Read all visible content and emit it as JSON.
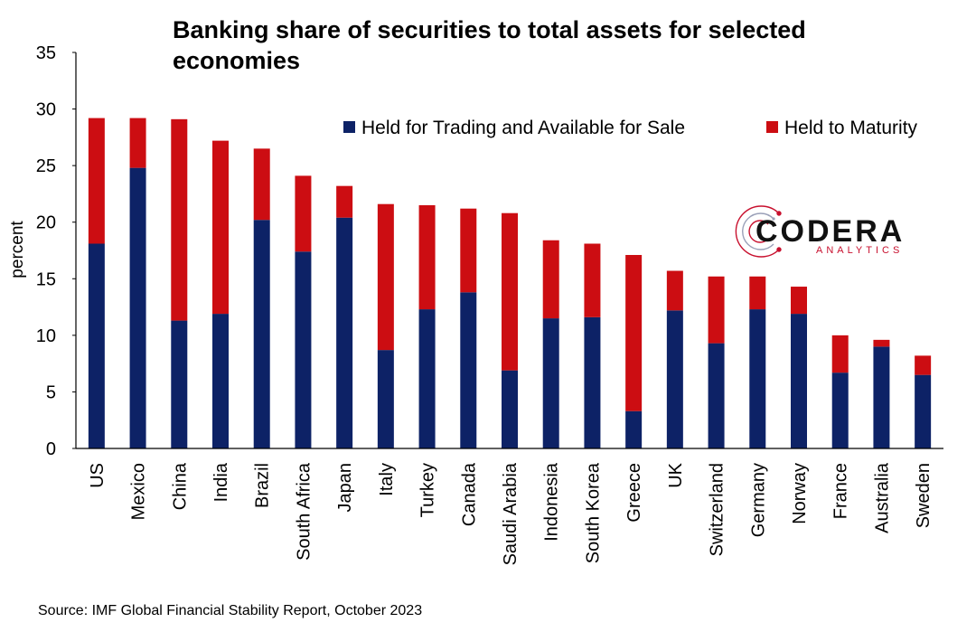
{
  "chart_data": {
    "type": "bar",
    "stacked": true,
    "title": "Banking share of securities to total assets for selected economies",
    "ylabel": "percent",
    "xlabel": "",
    "ylim": [
      0,
      35
    ],
    "yticks": [
      0,
      5,
      10,
      15,
      20,
      25,
      30,
      35
    ],
    "grid": false,
    "legend_position": "top-right",
    "categories": [
      "US",
      "Mexico",
      "China",
      "India",
      "Brazil",
      "South Africa",
      "Japan",
      "Italy",
      "Turkey",
      "Canada",
      "Saudi Arabia",
      "Indonesia",
      "South Korea",
      "Greece",
      "UK",
      "Switzerland",
      "Germany",
      "Norway",
      "France",
      "Australia",
      "Sweden"
    ],
    "series": [
      {
        "name": "Held for Trading and Available for Sale",
        "color": "#0d2266",
        "values": [
          18.1,
          24.8,
          11.3,
          11.9,
          20.2,
          17.4,
          20.4,
          8.7,
          12.3,
          13.8,
          6.9,
          11.5,
          11.6,
          3.3,
          12.2,
          9.3,
          12.3,
          11.9,
          6.7,
          9.0,
          6.5
        ]
      },
      {
        "name": "Held to Maturity",
        "color": "#cc0d12",
        "values": [
          11.1,
          4.4,
          17.8,
          15.3,
          6.3,
          6.7,
          2.8,
          12.9,
          9.2,
          7.4,
          13.9,
          6.9,
          6.5,
          13.8,
          3.5,
          5.9,
          2.9,
          2.4,
          3.3,
          0.6,
          1.7
        ]
      }
    ]
  },
  "source": "Source: IMF Global Financial Stability Report, October 2023",
  "logo": {
    "word": "CODERA",
    "sub": "ANALYTICS"
  }
}
